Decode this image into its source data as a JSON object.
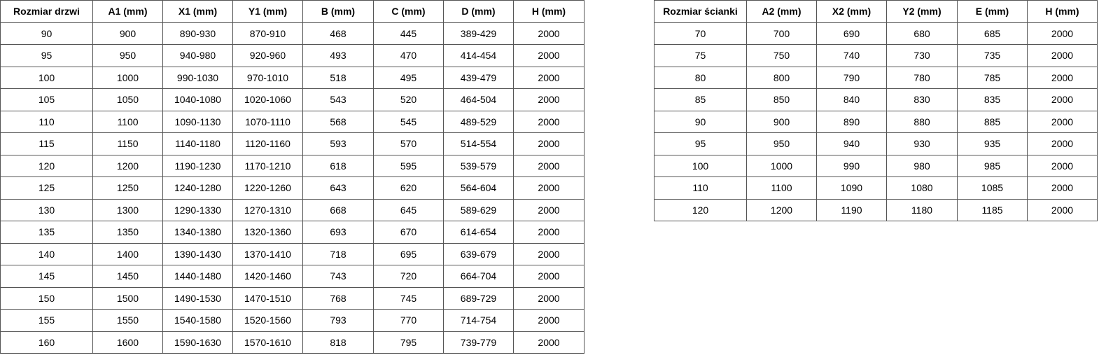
{
  "tables": [
    {
      "header": [
        "Rozmiar drzwi",
        "A1 (mm)",
        "X1 (mm)",
        "Y1 (mm)",
        "B (mm)",
        "C (mm)",
        "D (mm)",
        "H (mm)"
      ],
      "rows": [
        [
          "90",
          "900",
          "890-930",
          "870-910",
          "468",
          "445",
          "389-429",
          "2000"
        ],
        [
          "95",
          "950",
          "940-980",
          "920-960",
          "493",
          "470",
          "414-454",
          "2000"
        ],
        [
          "100",
          "1000",
          "990-1030",
          "970-1010",
          "518",
          "495",
          "439-479",
          "2000"
        ],
        [
          "105",
          "1050",
          "1040-1080",
          "1020-1060",
          "543",
          "520",
          "464-504",
          "2000"
        ],
        [
          "110",
          "1100",
          "1090-1130",
          "1070-1110",
          "568",
          "545",
          "489-529",
          "2000"
        ],
        [
          "115",
          "1150",
          "1140-1180",
          "1120-1160",
          "593",
          "570",
          "514-554",
          "2000"
        ],
        [
          "120",
          "1200",
          "1190-1230",
          "1170-1210",
          "618",
          "595",
          "539-579",
          "2000"
        ],
        [
          "125",
          "1250",
          "1240-1280",
          "1220-1260",
          "643",
          "620",
          "564-604",
          "2000"
        ],
        [
          "130",
          "1300",
          "1290-1330",
          "1270-1310",
          "668",
          "645",
          "589-629",
          "2000"
        ],
        [
          "135",
          "1350",
          "1340-1380",
          "1320-1360",
          "693",
          "670",
          "614-654",
          "2000"
        ],
        [
          "140",
          "1400",
          "1390-1430",
          "1370-1410",
          "718",
          "695",
          "639-679",
          "2000"
        ],
        [
          "145",
          "1450",
          "1440-1480",
          "1420-1460",
          "743",
          "720",
          "664-704",
          "2000"
        ],
        [
          "150",
          "1500",
          "1490-1530",
          "1470-1510",
          "768",
          "745",
          "689-729",
          "2000"
        ],
        [
          "155",
          "1550",
          "1540-1580",
          "1520-1560",
          "793",
          "770",
          "714-754",
          "2000"
        ],
        [
          "160",
          "1600",
          "1590-1630",
          "1570-1610",
          "818",
          "795",
          "739-779",
          "2000"
        ]
      ]
    },
    {
      "header": [
        "Rozmiar ścianki",
        "A2 (mm)",
        "X2 (mm)",
        "Y2 (mm)",
        "E (mm)",
        "H (mm)"
      ],
      "rows": [
        [
          "70",
          "700",
          "690",
          "680",
          "685",
          "2000"
        ],
        [
          "75",
          "750",
          "740",
          "730",
          "735",
          "2000"
        ],
        [
          "80",
          "800",
          "790",
          "780",
          "785",
          "2000"
        ],
        [
          "85",
          "850",
          "840",
          "830",
          "835",
          "2000"
        ],
        [
          "90",
          "900",
          "890",
          "880",
          "885",
          "2000"
        ],
        [
          "95",
          "950",
          "940",
          "930",
          "935",
          "2000"
        ],
        [
          "100",
          "1000",
          "990",
          "980",
          "985",
          "2000"
        ],
        [
          "110",
          "1100",
          "1090",
          "1080",
          "1085",
          "2000"
        ],
        [
          "120",
          "1200",
          "1190",
          "1180",
          "1185",
          "2000"
        ]
      ]
    }
  ]
}
